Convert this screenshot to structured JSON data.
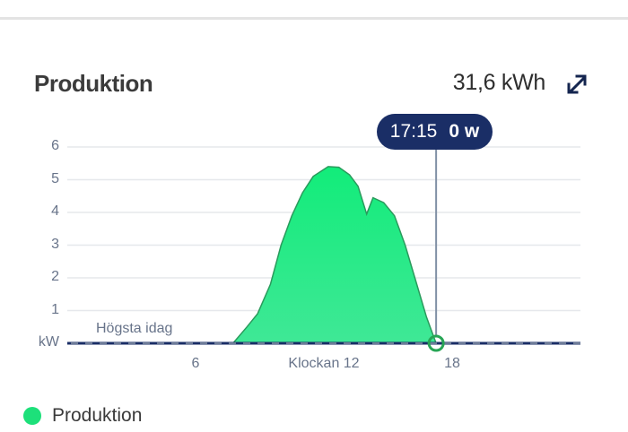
{
  "header": {
    "title": "Produktion",
    "total": "31,6 kWh",
    "expand_icon": "expand-arrows-icon"
  },
  "tooltip": {
    "time": "17:15",
    "value": "0 w"
  },
  "annotations": {
    "max_today_label": "Högsta idag"
  },
  "legend": {
    "items": [
      {
        "label": "Produktion",
        "color": "#1de07a"
      }
    ]
  },
  "colors": {
    "fill_top": "#12ec7a",
    "fill_bottom": "#3fe896",
    "stroke": "#2a9a5c",
    "axis": "#1a2e66",
    "tooltip_bg": "#1a2e66",
    "grid": "#e6e8ec",
    "cursor_line": "#8190a5",
    "marker": "#27a555"
  },
  "chart_data": {
    "type": "area",
    "title": "Produktion",
    "xlabel": "Klockan",
    "ylabel": "kW",
    "xlim": [
      0,
      24
    ],
    "ylim": [
      0,
      6
    ],
    "yticks": [
      1,
      2,
      3,
      4,
      5,
      6
    ],
    "ytick_labels": [
      "1",
      "2",
      "3",
      "4",
      "5",
      "6"
    ],
    "y_unit_label": "kW",
    "xticks": [
      6,
      12,
      18
    ],
    "xtick_labels": [
      "6",
      "Klockan 12",
      "18"
    ],
    "grid": true,
    "legend_position": "bottom-left",
    "series": [
      {
        "name": "Produktion",
        "x": [
          0,
          7.75,
          8.4,
          8.9,
          9.5,
          10.0,
          10.5,
          11.0,
          11.5,
          12.2,
          12.7,
          13.2,
          13.6,
          14.0,
          14.3,
          14.8,
          15.3,
          15.8,
          16.3,
          16.8,
          17.25,
          24
        ],
        "values": [
          0,
          0,
          0.5,
          0.9,
          1.8,
          3.0,
          3.9,
          4.6,
          5.1,
          5.4,
          5.38,
          5.15,
          4.8,
          3.95,
          4.45,
          4.3,
          3.9,
          3.0,
          1.9,
          0.8,
          0,
          0
        ]
      }
    ],
    "cursor": {
      "x": 17.25,
      "time": "17:15",
      "value": "0 w"
    },
    "annotations": [
      "Högsta idag"
    ],
    "total": "31,6 kWh"
  }
}
